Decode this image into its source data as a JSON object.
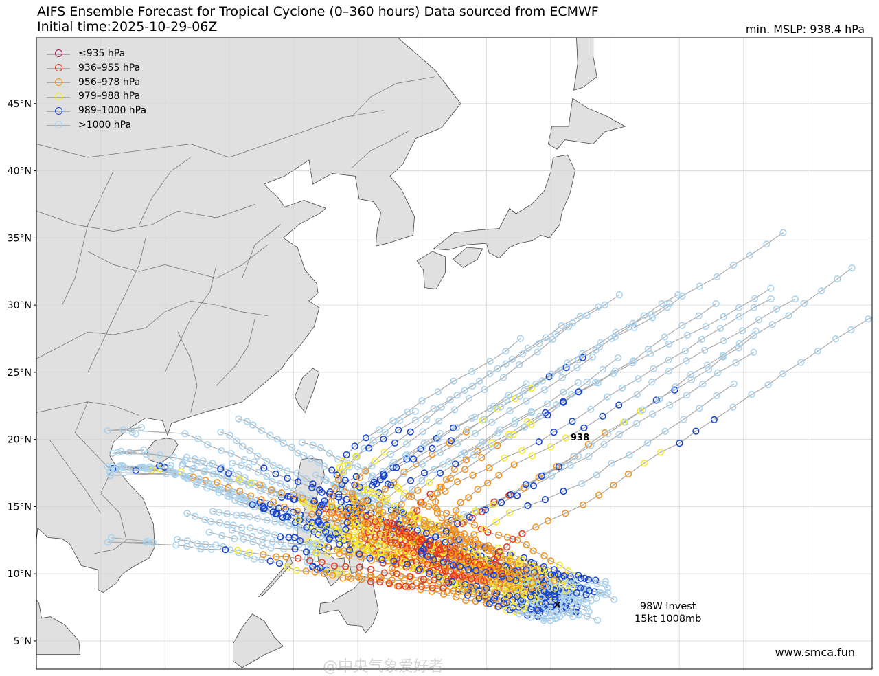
{
  "title": {
    "line1": "AIFS Ensemble Forecast for Tropical Cyclone (0–360 hours) Data sourced from ECMWF",
    "line2": "Initial time:2025-10-29-06Z"
  },
  "min_mslp": "min. MSLP: 938.4 hPa",
  "legend": [
    {
      "label": "≤935 hPa",
      "color": "#9b1b5a"
    },
    {
      "label": "936–955 hPa",
      "color": "#e8391f"
    },
    {
      "label": "956–978 hPa",
      "color": "#f5921c"
    },
    {
      "label": "979–988 hPa",
      "color": "#f7ea2a"
    },
    {
      "label": "989–1000 hPa",
      "color": "#1545d6"
    },
    {
      "label": ">1000 hPa",
      "color": "#a9d3ef"
    }
  ],
  "lat_ticks": [
    "45°N",
    "40°N",
    "35°N",
    "30°N",
    "25°N",
    "20°N",
    "15°N",
    "10°N",
    "5°N"
  ],
  "lat_tick_values": [
    45,
    40,
    35,
    30,
    25,
    20,
    15,
    10,
    5
  ],
  "invest": {
    "line1": "98W Invest",
    "line2": "15kt 1008mb",
    "lat": 7.7,
    "lon": 140.5
  },
  "min_label": {
    "text": "938",
    "lat": 18.9,
    "lon": 133.3
  },
  "credit": "www.smca.fun",
  "watermark": "@中央气象爱好者",
  "map_extent": {
    "lon_min": 100,
    "lon_max": 165,
    "lat_min": 2.9,
    "lat_max": 49.9
  },
  "colors": {
    "land": "#e0e0e0",
    "ocean": "#ffffff",
    "coast": "#444444",
    "track": "#aaaaaa",
    "grid": "#d6d6d6"
  }
}
